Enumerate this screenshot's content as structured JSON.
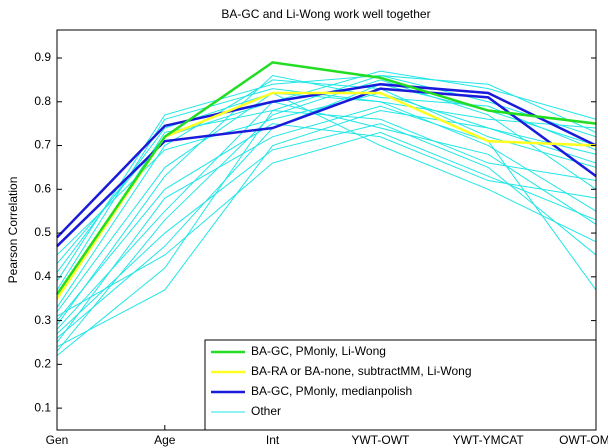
{
  "chart_data": {
    "type": "line",
    "title": "BA-GC and Li-Wong work well together",
    "y_label": "Pearson Correlation",
    "categories": [
      "Gen",
      "Age",
      "Int",
      "YWT-OWT",
      "YWT-YMCAT",
      "OWT-OMCAT"
    ],
    "ylim": [
      0.05,
      0.964
    ],
    "yticks": [
      0.1,
      0.2,
      0.3,
      0.4,
      0.5,
      0.6,
      0.7,
      0.8,
      0.9
    ],
    "legend": "lower right",
    "series": [
      {
        "name": "BA-GC, PMonly, Li-Wong",
        "color": "#22dd22",
        "values": [
          [
            0.36,
            0.72,
            0.89,
            0.855,
            0.78,
            0.75
          ]
        ]
      },
      {
        "name": "BA-RA or BA-none, subtractMM, Li-Wong",
        "color": "#ffff22",
        "values": [
          [
            0.35,
            0.72,
            0.82,
            0.82,
            0.71,
            0.7
          ]
        ]
      },
      {
        "name": "BA-GC, PMonly, medianpolish",
        "color": "#1a1adb",
        "values": [
          [
            0.49,
            0.745,
            0.8,
            0.84,
            0.82,
            0.7
          ],
          [
            0.47,
            0.71,
            0.74,
            0.83,
            0.81,
            0.63
          ]
        ]
      },
      {
        "name": "Other",
        "color": "#22e6e6",
        "values": [
          [
            0.22,
            0.42,
            0.78,
            0.86,
            0.8,
            0.72
          ],
          [
            0.24,
            0.37,
            0.7,
            0.78,
            0.74,
            0.68
          ],
          [
            0.26,
            0.47,
            0.74,
            0.84,
            0.78,
            0.7
          ],
          [
            0.28,
            0.55,
            0.8,
            0.87,
            0.83,
            0.76
          ],
          [
            0.3,
            0.6,
            0.75,
            0.72,
            0.62,
            0.58
          ],
          [
            0.32,
            0.65,
            0.82,
            0.8,
            0.7,
            0.55
          ],
          [
            0.33,
            0.7,
            0.85,
            0.83,
            0.72,
            0.65
          ],
          [
            0.35,
            0.73,
            0.78,
            0.76,
            0.66,
            0.62
          ],
          [
            0.37,
            0.76,
            0.83,
            0.8,
            0.76,
            0.74
          ],
          [
            0.39,
            0.77,
            0.84,
            0.86,
            0.84,
            0.73
          ],
          [
            0.41,
            0.74,
            0.82,
            0.7,
            0.6,
            0.48
          ],
          [
            0.43,
            0.72,
            0.8,
            0.74,
            0.68,
            0.52
          ],
          [
            0.45,
            0.69,
            0.76,
            0.82,
            0.74,
            0.66
          ],
          [
            0.27,
            0.5,
            0.69,
            0.75,
            0.65,
            0.45
          ],
          [
            0.25,
            0.58,
            0.72,
            0.79,
            0.71,
            0.37
          ],
          [
            0.29,
            0.63,
            0.86,
            0.81,
            0.79,
            0.69
          ],
          [
            0.31,
            0.45,
            0.66,
            0.73,
            0.63,
            0.53
          ],
          [
            0.23,
            0.53,
            0.77,
            0.85,
            0.77,
            0.6
          ]
        ]
      }
    ]
  }
}
